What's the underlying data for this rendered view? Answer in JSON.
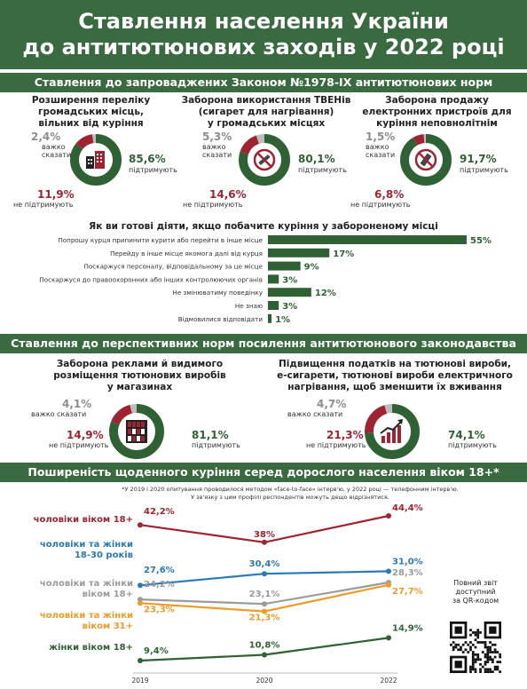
{
  "header": {
    "title_line1": "Ставлення населення України",
    "title_line2": "до антитютюнових заходів у 2022 році"
  },
  "section1": {
    "title": "Ставлення до запроваджених Законом №1978-IX антитютюнових норм",
    "cards": [
      {
        "title_lines": [
          "Розширення переліку",
          "громадських місць,",
          "вільних від куріння"
        ],
        "support": "85,6%",
        "support_label": "підтримують",
        "oppose": "11,9%",
        "oppose_label": "не підтримують",
        "hard": "2,4%",
        "hard_label_1": "важко",
        "hard_label_2": "сказати",
        "icon": "city-buildings-icon"
      },
      {
        "title_lines": [
          "Заборона використання ТВЕНів",
          "(сигарет для нагрівання)",
          "у громадських місцях"
        ],
        "support": "80,1%",
        "support_label": "підтримують",
        "oppose": "14,6%",
        "oppose_label": "не підтримують",
        "hard": "5,3%",
        "hard_label_1": "важко",
        "hard_label_2": "сказати",
        "icon": "no-heated-tobacco-icon"
      },
      {
        "title_lines": [
          "Заборона продажу",
          "електронних пристроїв для",
          "куріння неповнолітнім"
        ],
        "support": "91,7%",
        "support_label": "підтримують",
        "oppose": "6,8%",
        "oppose_label": "не підтримують",
        "hard": "1,5%",
        "hard_label_1": "важко",
        "hard_label_2": "сказати",
        "icon": "no-vape-icon"
      }
    ],
    "bars_title": "Як ви готові діяти, якщо побачите куріння у забороненому місці"
  },
  "section2": {
    "title": "Ставлення до перспективних норм посилення антитютюнового законодавства",
    "cards": [
      {
        "title_lines": [
          "Заборона реклами й видимого",
          "розміщення тютюнових виробів",
          "у магазинах"
        ],
        "support": "81,1%",
        "support_label": "підтримують",
        "oppose": "14,9%",
        "oppose_label": "не підтримують",
        "hard": "4,1%",
        "hard_label": "важко сказати",
        "icon": "store-shelf-icon"
      },
      {
        "title_lines": [
          "Підвищення податків на тютюнові вироби,",
          "е-сигарети, тютюнові вироби електричного",
          "нагрівання, щоб зменшити їх вживання"
        ],
        "support": "74,1%",
        "support_label": "підтримують",
        "oppose": "21,3%",
        "oppose_label": "не підтримують",
        "hard": "4,7%",
        "hard_label": "важко сказати",
        "icon": "rising-price-chart-icon"
      }
    ]
  },
  "section3": {
    "title": "Поширеність щоденного куріння серед дорослого населення віком 18+*",
    "note_line1": "*У 2019 і 2020 опитування проводилося методом «face-to-face» інтерв'ю, у 2022 році — телефонним інтерв'ю.",
    "note_line2": "У зв'язку з цим профілі респондентів можуть дещо відрізнятися.",
    "qr_text_lines": [
      "Повний звіт",
      "доступний",
      "за QR-кодом"
    ]
  },
  "chart_data": [
    {
      "type": "pie",
      "title": "Розширення переліку громадських місць, вільних від куріння",
      "slices": [
        {
          "label": "підтримують",
          "value": 85.6,
          "color": "#2f6134"
        },
        {
          "label": "не підтримують",
          "value": 11.9,
          "color": "#a02331"
        },
        {
          "label": "важко сказати",
          "value": 2.4,
          "color": "#bdbdbd"
        }
      ]
    },
    {
      "type": "pie",
      "title": "Заборона використання ТВЕНів (сигарет для нагрівання) у громадських місцях",
      "slices": [
        {
          "label": "підтримують",
          "value": 80.1,
          "color": "#2f6134"
        },
        {
          "label": "не підтримують",
          "value": 14.6,
          "color": "#a02331"
        },
        {
          "label": "важко сказати",
          "value": 5.3,
          "color": "#bdbdbd"
        }
      ]
    },
    {
      "type": "pie",
      "title": "Заборона продажу електронних пристроїв для куріння неповнолітнім",
      "slices": [
        {
          "label": "підтримують",
          "value": 91.7,
          "color": "#2f6134"
        },
        {
          "label": "не підтримують",
          "value": 6.8,
          "color": "#a02331"
        },
        {
          "label": "важко сказати",
          "value": 1.5,
          "color": "#bdbdbd"
        }
      ]
    },
    {
      "type": "bar",
      "orientation": "horizontal",
      "title": "Як ви готові діяти, якщо побачите куріння у забороненому місці",
      "categories": [
        "Попрошу курця припинити курити або перейти в інше місце",
        "Перейду в інше місце якомога далі від курця",
        "Поскаржуся персоналу, відповідальному за це місце",
        "Поскаржуся до правоохоронних або інших контролюючих органів",
        "Не змінюватиму поведінку",
        "Не знаю",
        "Відмовилися відповідати"
      ],
      "values": [
        55,
        17,
        9,
        3,
        12,
        3,
        1
      ],
      "labels": [
        "55%",
        "17%",
        "9%",
        "3%",
        "12%",
        "3%",
        "1%"
      ],
      "xlim": [
        0,
        55
      ],
      "color": "#2f6134"
    },
    {
      "type": "pie",
      "title": "Заборона реклами й видимого розміщення тютюнових виробів у магазинах",
      "slices": [
        {
          "label": "підтримують",
          "value": 81.1,
          "color": "#2f6134"
        },
        {
          "label": "не підтримують",
          "value": 14.9,
          "color": "#a02331"
        },
        {
          "label": "важко сказати",
          "value": 4.1,
          "color": "#bdbdbd"
        }
      ]
    },
    {
      "type": "pie",
      "title": "Підвищення податків на тютюнові вироби, е-сигарети, тютюнові вироби електричного нагрівання, щоб зменшити їх вживання",
      "slices": [
        {
          "label": "підтримують",
          "value": 74.1,
          "color": "#2f6134"
        },
        {
          "label": "не підтримують",
          "value": 21.3,
          "color": "#a02331"
        },
        {
          "label": "важко сказати",
          "value": 4.7,
          "color": "#bdbdbd"
        }
      ]
    },
    {
      "type": "line",
      "title": "Поширеність щоденного куріння серед дорослого населення віком 18+*",
      "x": [
        "2019",
        "2020",
        "2022"
      ],
      "ylim": [
        5,
        48
      ],
      "series": [
        {
          "name": "чоловіки віком 18+",
          "values": [
            42.2,
            38,
            44.4
          ],
          "labels": [
            "42,2%",
            "38%",
            "44,4%"
          ],
          "color": "#a02331"
        },
        {
          "name": "чоловіки та жінки 18-30 років",
          "values": [
            27.6,
            30.4,
            31.0
          ],
          "labels": [
            "27,6%",
            "30,4%",
            "31,0%"
          ],
          "color": "#2a7ab8"
        },
        {
          "name": "чоловіки та жінки віком 18+",
          "values": [
            24.2,
            23.1,
            28.3
          ],
          "labels": [
            "24,2%",
            "23,1%",
            "28,3%"
          ],
          "color": "#9b9b9b"
        },
        {
          "name": "чоловіки та жінки віком 31+",
          "values": [
            23.3,
            21.3,
            27.7
          ],
          "labels": [
            "23,3%",
            "21,3%",
            "27,7%"
          ],
          "color": "#ef9b2a"
        },
        {
          "name": "жінки віком 18+",
          "values": [
            9.4,
            10.8,
            14.9
          ],
          "labels": [
            "9,4%",
            "10,8%",
            "14,9%"
          ],
          "color": "#2f6134"
        }
      ]
    }
  ]
}
